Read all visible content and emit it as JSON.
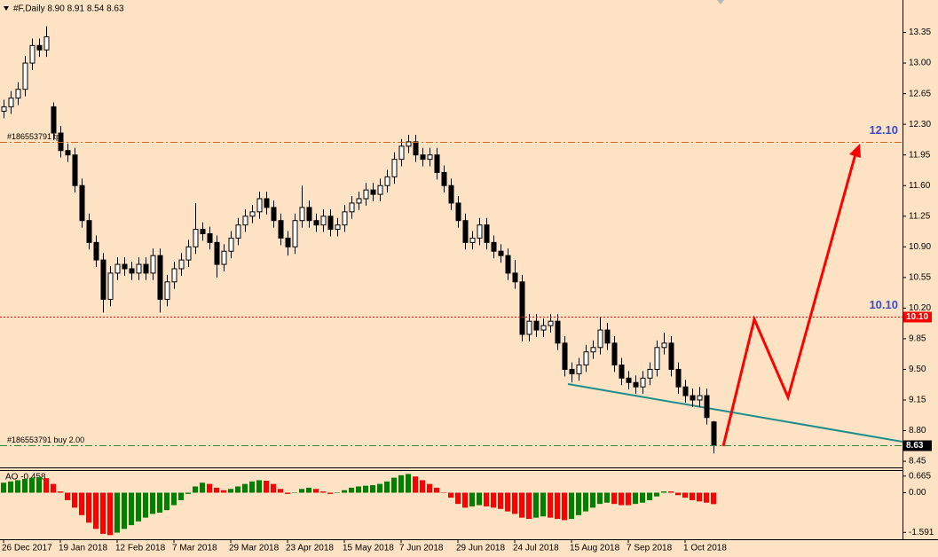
{
  "chart_data": {
    "type": "candlestick",
    "header": "#F,Daily  8.90 8.91 8.54 8.63",
    "categories": [
      "26 Dec 2017",
      null,
      null,
      null,
      null,
      null,
      null,
      null,
      "19 Jan 2018",
      null,
      null,
      null,
      null,
      null,
      null,
      null,
      "12 Feb 2018",
      null,
      null,
      null,
      null,
      null,
      null,
      null,
      "7 Mar 2018",
      null,
      null,
      null,
      null,
      null,
      null,
      null,
      "29 Mar 2018",
      null,
      null,
      null,
      null,
      null,
      null,
      null,
      "23 Apr 2018",
      null,
      null,
      null,
      null,
      null,
      null,
      null,
      "15 May 2018",
      null,
      null,
      null,
      null,
      null,
      null,
      null,
      "7 Jun 2018",
      null,
      null,
      null,
      null,
      null,
      null,
      null,
      "29 Jun 2018",
      null,
      null,
      null,
      null,
      null,
      null,
      null,
      "24 Jul 2018",
      null,
      null,
      null,
      null,
      null,
      null,
      null,
      "15 Aug 2018",
      null,
      null,
      null,
      null,
      null,
      null,
      null,
      "7 Sep 2018",
      null,
      null,
      null,
      null,
      null,
      null,
      null,
      "1 Oct 2018",
      null,
      null,
      null,
      null
    ],
    "open": [
      12.45,
      12.5,
      12.6,
      12.7,
      13.0,
      13.2,
      13.15,
      12.5,
      12.2,
      12.0,
      11.95,
      11.6,
      11.2,
      10.95,
      10.75,
      10.3,
      10.6,
      10.7,
      10.65,
      10.6,
      10.7,
      10.6,
      10.8,
      10.3,
      10.5,
      10.65,
      10.75,
      10.9,
      11.1,
      11.05,
      10.95,
      10.7,
      10.85,
      11.0,
      11.15,
      11.25,
      11.3,
      11.45,
      11.35,
      11.2,
      11.0,
      10.9,
      11.2,
      11.35,
      11.2,
      11.15,
      11.25,
      11.1,
      11.15,
      11.3,
      11.4,
      11.45,
      11.55,
      11.5,
      11.6,
      11.7,
      11.9,
      12.05,
      12.1,
      11.95,
      11.9,
      11.95,
      11.75,
      11.6,
      11.4,
      11.2,
      10.95,
      11.0,
      11.15,
      10.95,
      10.85,
      10.8,
      10.6,
      10.5,
      9.9,
      10.05,
      9.95,
      10.0,
      10.05,
      9.8,
      9.5,
      9.45,
      9.55,
      9.7,
      9.75,
      9.95,
      9.8,
      9.55,
      9.4,
      9.35,
      9.3,
      9.4,
      9.5,
      9.75,
      9.8,
      9.5,
      9.3,
      9.2,
      9.15,
      9.2,
      8.9
    ],
    "high": [
      12.58,
      12.68,
      12.78,
      13.08,
      13.28,
      13.28,
      13.42,
      12.55,
      12.28,
      12.08,
      12.03,
      11.68,
      11.28,
      11.03,
      10.83,
      10.68,
      10.78,
      10.78,
      10.73,
      10.78,
      10.78,
      10.88,
      10.88,
      10.58,
      10.73,
      10.83,
      10.98,
      11.4,
      11.18,
      11.13,
      11.03,
      10.93,
      11.08,
      11.23,
      11.33,
      11.38,
      11.53,
      11.53,
      11.43,
      11.28,
      11.08,
      11.28,
      11.6,
      11.43,
      11.28,
      11.33,
      11.33,
      11.23,
      11.38,
      11.48,
      11.53,
      11.63,
      11.63,
      11.68,
      11.78,
      11.98,
      12.13,
      12.18,
      12.18,
      12.03,
      12.03,
      12.03,
      11.83,
      11.68,
      11.48,
      11.28,
      11.08,
      11.23,
      11.23,
      11.03,
      10.93,
      10.88,
      10.75,
      10.58,
      10.13,
      10.13,
      10.08,
      10.13,
      10.13,
      9.88,
      9.58,
      9.63,
      9.78,
      9.83,
      10.1,
      10.03,
      9.88,
      9.63,
      9.48,
      9.43,
      9.48,
      9.58,
      9.83,
      9.92,
      9.88,
      9.58,
      9.38,
      9.28,
      9.3,
      9.28,
      8.91
    ],
    "low": [
      12.37,
      12.42,
      12.52,
      12.62,
      12.92,
      13.07,
      13.07,
      12.12,
      11.92,
      11.87,
      11.52,
      11.12,
      10.87,
      10.67,
      10.15,
      10.22,
      10.52,
      10.57,
      10.52,
      10.52,
      10.52,
      10.52,
      10.15,
      10.22,
      10.42,
      10.57,
      10.67,
      10.82,
      10.97,
      10.87,
      10.55,
      10.62,
      10.77,
      10.92,
      11.07,
      11.17,
      11.22,
      11.27,
      11.12,
      10.92,
      10.8,
      10.82,
      11.12,
      11.12,
      11.07,
      11.07,
      11.02,
      11.02,
      11.07,
      11.22,
      11.32,
      11.37,
      11.42,
      11.42,
      11.52,
      11.62,
      11.82,
      11.97,
      11.87,
      11.82,
      11.82,
      11.67,
      11.52,
      11.32,
      11.12,
      10.87,
      10.87,
      10.92,
      10.87,
      10.77,
      10.72,
      10.52,
      10.42,
      9.82,
      9.82,
      9.87,
      9.87,
      9.92,
      9.72,
      9.42,
      9.35,
      9.37,
      9.47,
      9.62,
      9.67,
      9.72,
      9.47,
      9.32,
      9.27,
      9.22,
      9.22,
      9.32,
      9.42,
      9.67,
      9.42,
      9.22,
      9.12,
      9.07,
      9.07,
      8.87,
      8.54
    ],
    "close": [
      12.5,
      12.6,
      12.7,
      13.0,
      13.2,
      13.15,
      13.3,
      12.2,
      12.0,
      11.95,
      11.6,
      11.2,
      10.95,
      10.75,
      10.3,
      10.6,
      10.7,
      10.65,
      10.6,
      10.7,
      10.6,
      10.8,
      10.3,
      10.5,
      10.65,
      10.75,
      10.9,
      11.1,
      11.05,
      10.95,
      10.7,
      10.85,
      11.0,
      11.15,
      11.25,
      11.3,
      11.45,
      11.35,
      11.2,
      11.0,
      10.9,
      11.2,
      11.35,
      11.2,
      11.15,
      11.25,
      11.1,
      11.15,
      11.3,
      11.4,
      11.45,
      11.55,
      11.5,
      11.6,
      11.7,
      11.9,
      12.05,
      12.1,
      11.95,
      11.9,
      11.95,
      11.75,
      11.6,
      11.4,
      11.2,
      10.95,
      11.0,
      11.15,
      10.95,
      10.85,
      10.8,
      10.6,
      10.5,
      9.9,
      10.05,
      9.95,
      10.0,
      10.05,
      9.8,
      9.5,
      9.45,
      9.55,
      9.7,
      9.75,
      9.95,
      9.8,
      9.55,
      9.4,
      9.35,
      9.3,
      9.4,
      9.5,
      9.75,
      9.8,
      9.5,
      9.3,
      9.2,
      9.15,
      9.2,
      8.95,
      8.63
    ],
    "up_color": "#ffffff",
    "down_color": "#000000",
    "ylim": [
      8.39,
      13.7
    ],
    "yticks": [
      13.35,
      {
        "value": 13,
        "label": "13.00"
      },
      12.65,
      {
        "value": 12.3,
        "label": "12.30"
      },
      11.95,
      {
        "value": 11.6,
        "label": "11.60"
      },
      11.25,
      {
        "value": 10.9,
        "label": "10.90"
      },
      10.55,
      {
        "value": 10.2,
        "label": "10.20"
      },
      9.85,
      {
        "value": 9.5,
        "label": "9.50"
      },
      9.15,
      {
        "value": 8.8,
        "label": "8.80"
      },
      8.45
    ],
    "levels": [
      {
        "value": 12.1,
        "label": "#186553791 tp",
        "annotation": "12.10",
        "color": "#d2691e",
        "dash": "dashdot"
      },
      {
        "value": 10.1,
        "axis_label": "10.10",
        "annotation": "10.10",
        "color": "#ff0000",
        "dash": "dotted"
      },
      {
        "value": 8.63,
        "label": "#186553791 buy 2.00",
        "axis_label": "8.63",
        "color": "#2e8b2e",
        "dash": "dashdot"
      }
    ],
    "indicator": {
      "type": "bar",
      "title": "AO -0.458",
      "up_color": "#008000",
      "down_color": "#ff0000",
      "ylim": [
        -1.83,
        0.87
      ],
      "yticks": [
        0.665,
        {
          "value": 0,
          "label": "0.00"
        },
        -1.591
      ],
      "values": [
        0.4,
        0.45,
        0.5,
        0.55,
        0.6,
        0.62,
        0.58,
        0.35,
        0.05,
        -0.3,
        -0.6,
        -0.9,
        -1.2,
        -1.45,
        -1.65,
        -1.7,
        -1.6,
        -1.45,
        -1.3,
        -1.15,
        -1.0,
        -0.85,
        -0.8,
        -0.7,
        -0.5,
        -0.3,
        -0.05,
        0.25,
        0.4,
        0.35,
        0.2,
        0.1,
        0.15,
        0.25,
        0.35,
        0.45,
        0.5,
        0.48,
        0.35,
        0.15,
        -0.05,
        0.0,
        0.15,
        0.2,
        0.15,
        0.05,
        -0.05,
        0.0,
        0.1,
        0.2,
        0.25,
        0.28,
        0.3,
        0.35,
        0.45,
        0.6,
        0.7,
        0.75,
        0.65,
        0.5,
        0.35,
        0.2,
        0.0,
        -0.2,
        -0.45,
        -0.6,
        -0.55,
        -0.5,
        -0.55,
        -0.6,
        -0.65,
        -0.75,
        -0.85,
        -1.0,
        -1.05,
        -1.0,
        -0.95,
        -1.0,
        -1.05,
        -1.1,
        -1.05,
        -0.9,
        -0.75,
        -0.6,
        -0.45,
        -0.4,
        -0.45,
        -0.5,
        -0.5,
        -0.45,
        -0.4,
        -0.3,
        -0.15,
        0.05,
        0.05,
        -0.1,
        -0.2,
        -0.3,
        -0.35,
        -0.4,
        -0.458
      ]
    }
  }
}
